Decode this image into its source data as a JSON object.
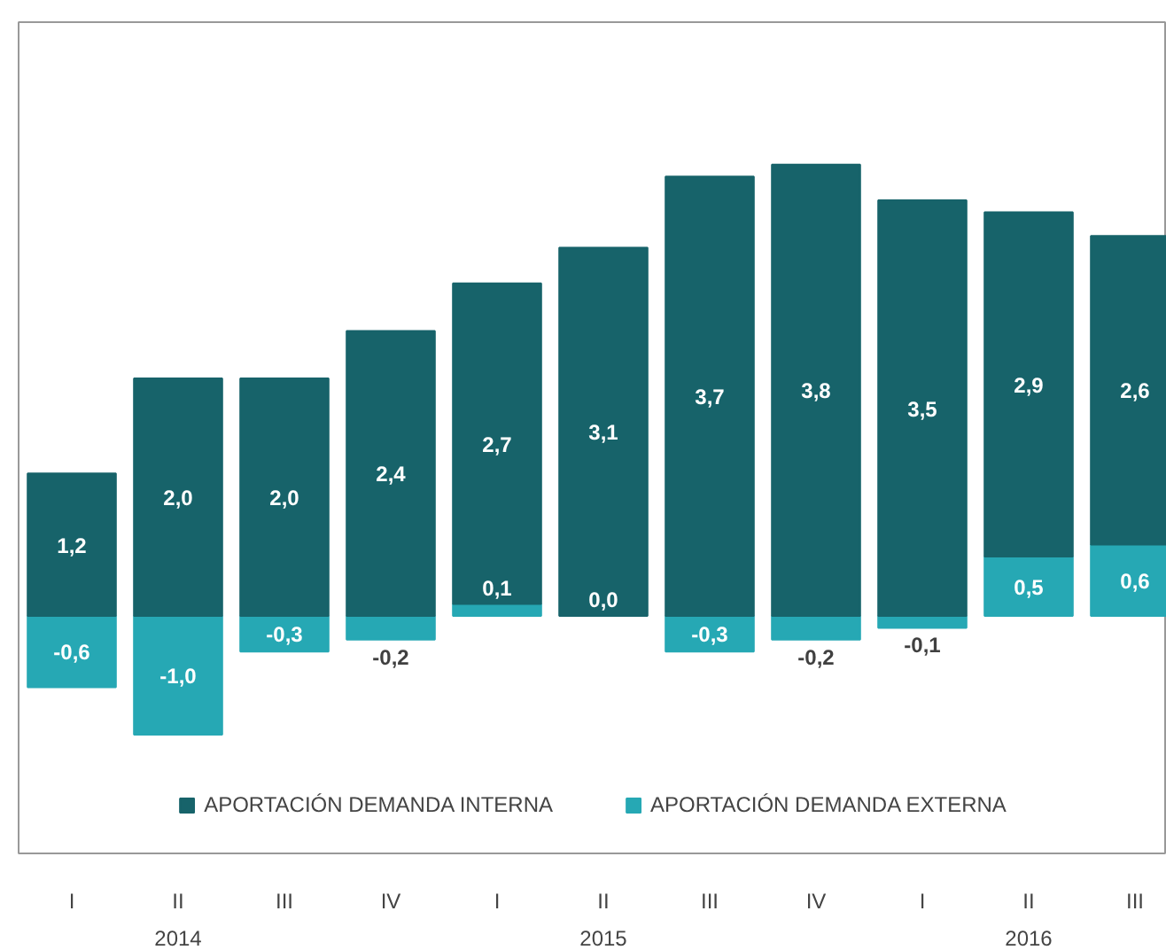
{
  "chart_data": {
    "type": "bar",
    "stacked": true,
    "categories": [
      "I",
      "II",
      "III",
      "IV",
      "I",
      "II",
      "III",
      "IV",
      "I",
      "II",
      "III"
    ],
    "series": [
      {
        "name": "APORTACIÓN DEMANDA EXTERNA",
        "color": "#26a8b4",
        "values": [
          -0.6,
          -1.0,
          -0.3,
          -0.2,
          0.1,
          0.0,
          -0.3,
          -0.2,
          -0.1,
          0.5,
          0.6
        ],
        "value_labels": [
          "-0,6",
          "-1,0",
          "-0,3",
          "-0,2",
          "0,1",
          "0,0",
          "-0,3",
          "-0,2",
          "-0,1",
          "0,5",
          "0,6"
        ]
      },
      {
        "name": "APORTACIÓN DEMANDA INTERNA",
        "color": "#17636a",
        "values": [
          1.2,
          2.0,
          2.0,
          2.4,
          2.7,
          3.1,
          3.7,
          3.8,
          3.5,
          2.9,
          2.6
        ],
        "value_labels": [
          "1,2",
          "2,0",
          "2,0",
          "2,4",
          "2,7",
          "3,1",
          "3,7",
          "3,8",
          "3,5",
          "2,9",
          "2,6"
        ]
      }
    ],
    "annotations": [
      "2014",
      "2015",
      "2016"
    ],
    "ylim": [
      -2,
      5
    ],
    "tick_labels": "x",
    "grid": false,
    "legend": "bottom"
  }
}
